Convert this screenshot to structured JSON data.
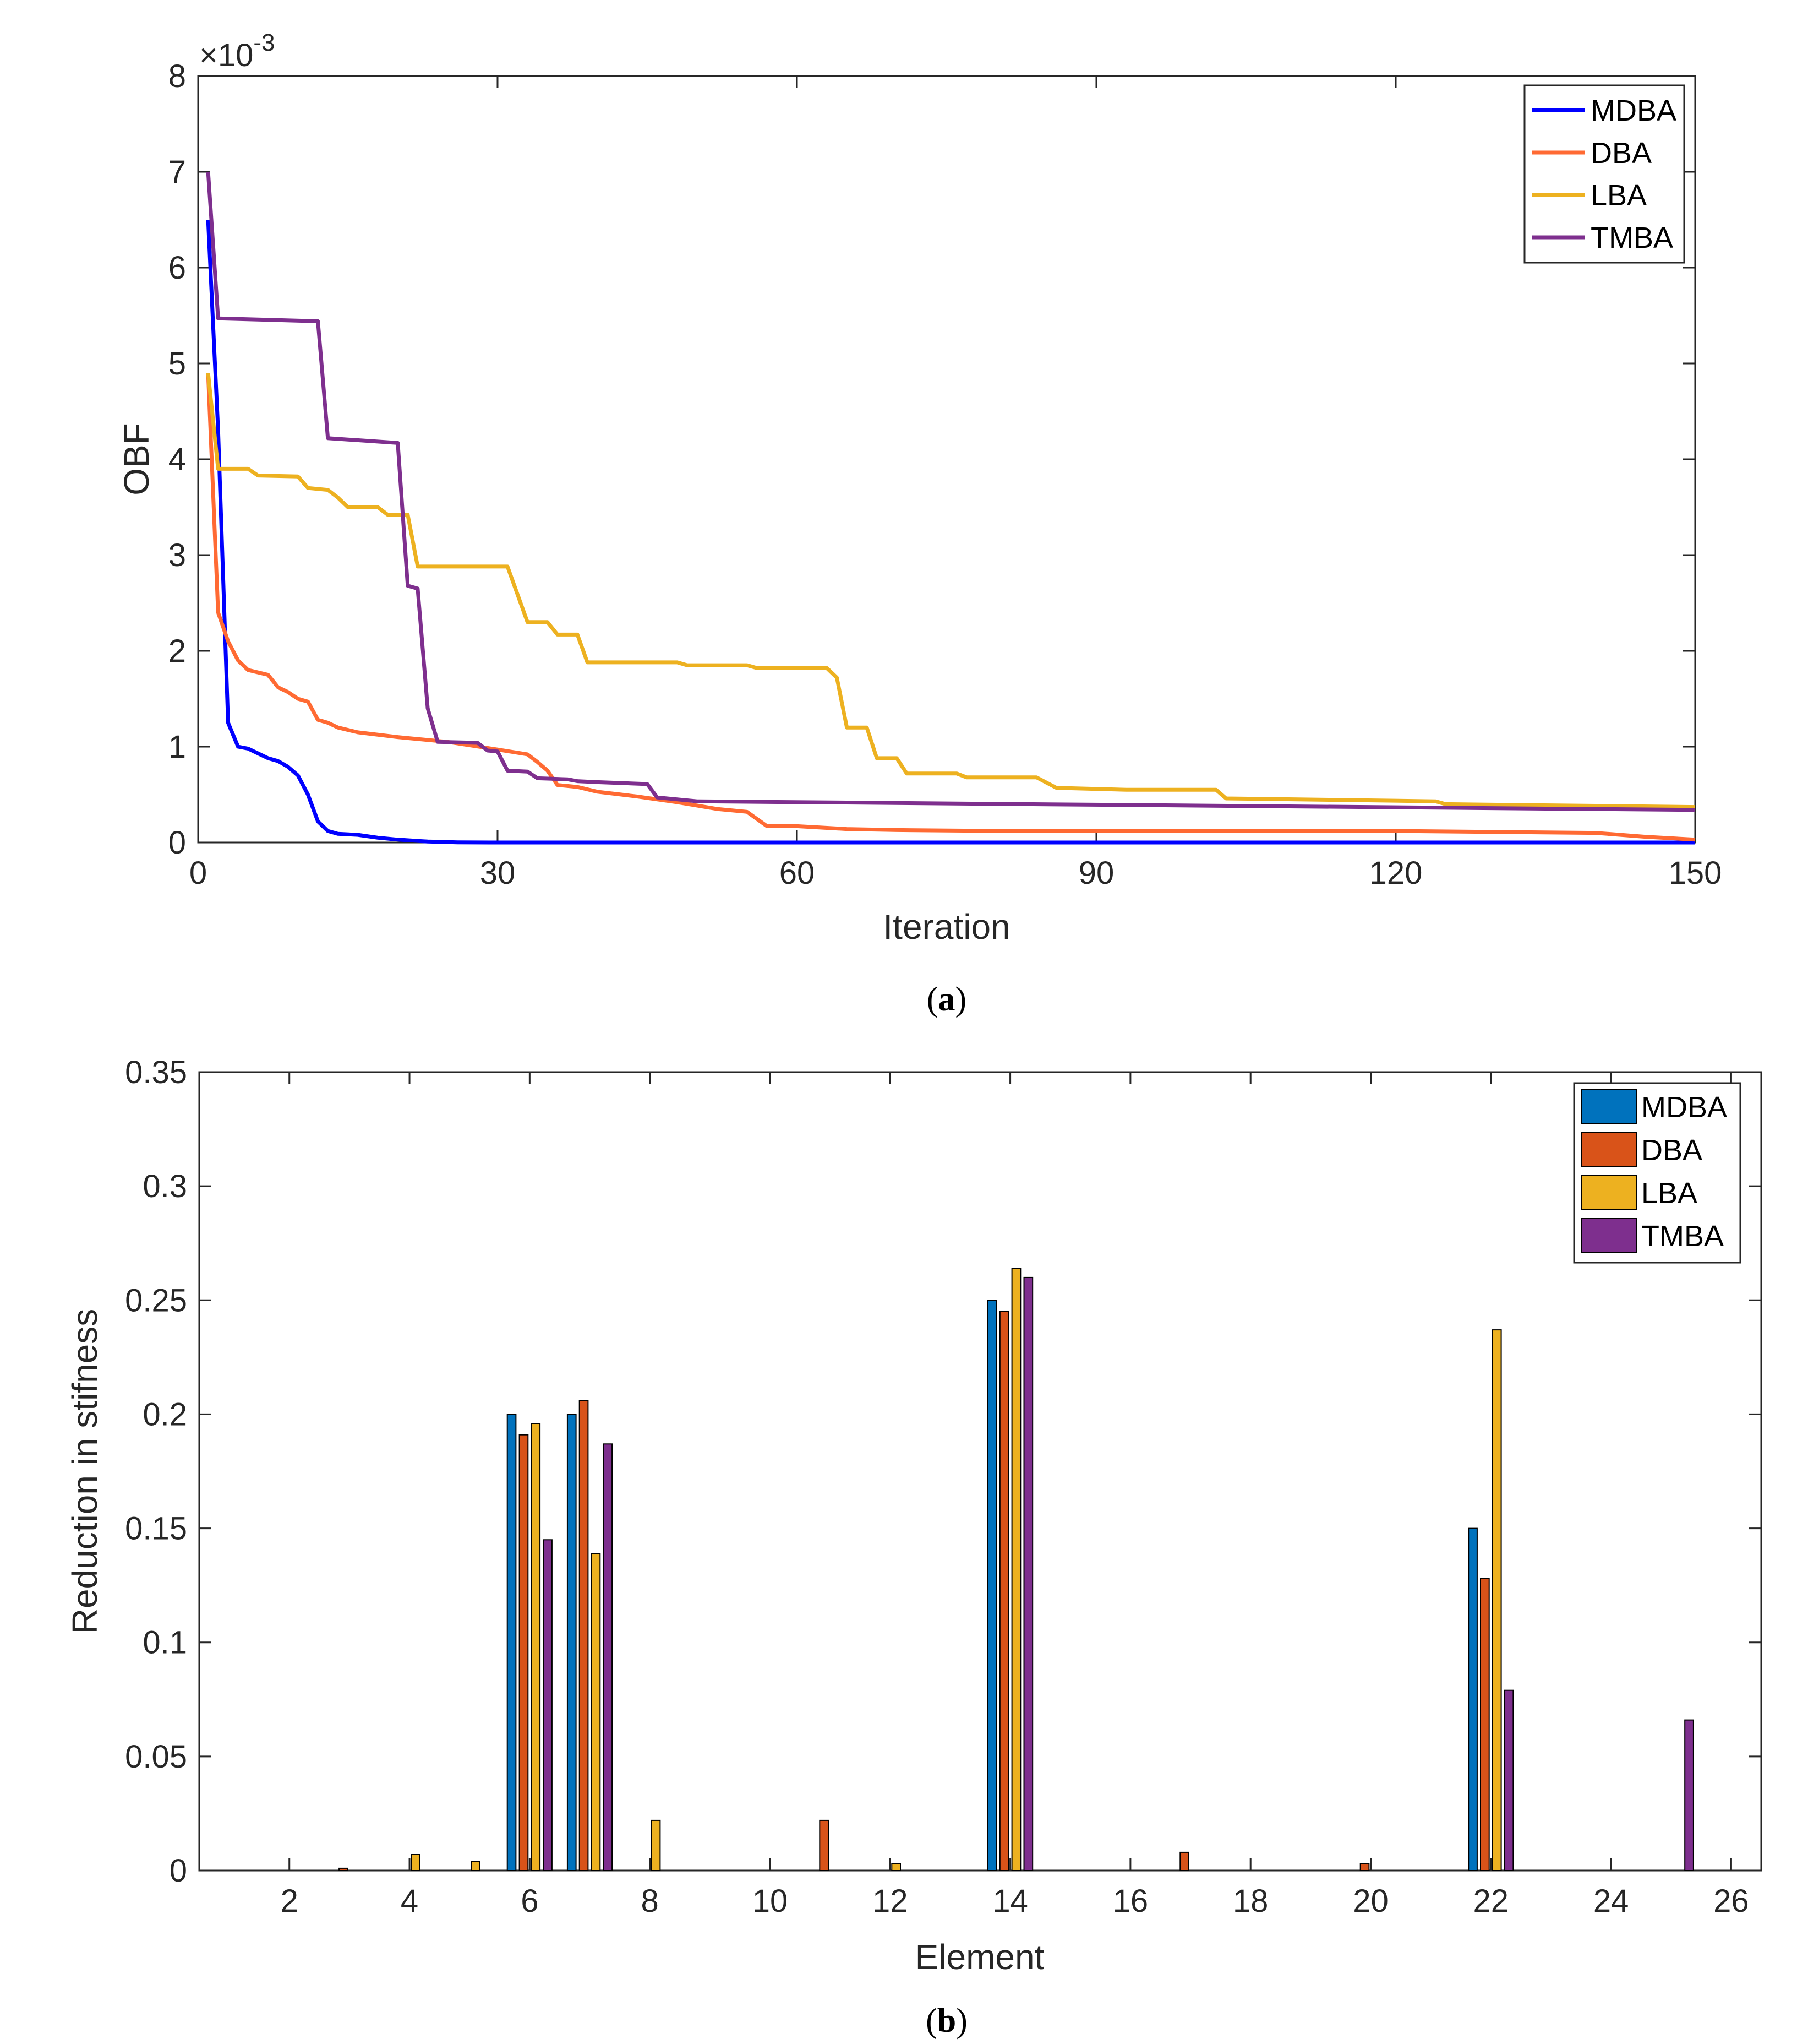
{
  "chart_data": [
    {
      "id": "a",
      "type": "line",
      "caption_letter": "a",
      "xlabel": "Iteration",
      "ylabel": "OBF",
      "exponent_label": "×10",
      "exponent_power": "-3",
      "xlim": [
        0,
        150
      ],
      "ylim": [
        0,
        8
      ],
      "xticks": [
        0,
        30,
        60,
        90,
        120,
        150
      ],
      "yticks": [
        0,
        1,
        2,
        3,
        4,
        5,
        6,
        7,
        8
      ],
      "legend_position": "top-right",
      "series": [
        {
          "name": "MDBA",
          "color": "#0000ff",
          "points": [
            [
              1,
              6.5
            ],
            [
              2,
              4.3
            ],
            [
              3,
              1.25
            ],
            [
              4,
              1.0
            ],
            [
              5,
              0.98
            ],
            [
              6,
              0.93
            ],
            [
              7,
              0.88
            ],
            [
              8,
              0.85
            ],
            [
              9,
              0.79
            ],
            [
              10,
              0.7
            ],
            [
              11,
              0.5
            ],
            [
              12,
              0.22
            ],
            [
              13,
              0.12
            ],
            [
              14,
              0.09
            ],
            [
              16,
              0.08
            ],
            [
              18,
              0.05
            ],
            [
              20,
              0.03
            ],
            [
              23,
              0.01
            ],
            [
              26,
              0.002
            ],
            [
              30,
              0.0
            ],
            [
              150,
              0.0
            ]
          ]
        },
        {
          "name": "DBA",
          "color": "#ff6a33",
          "points": [
            [
              1,
              4.9
            ],
            [
              2,
              2.4
            ],
            [
              3,
              2.1
            ],
            [
              4,
              1.9
            ],
            [
              5,
              1.8
            ],
            [
              7,
              1.75
            ],
            [
              8,
              1.62
            ],
            [
              9,
              1.57
            ],
            [
              10,
              1.5
            ],
            [
              11,
              1.47
            ],
            [
              12,
              1.28
            ],
            [
              13,
              1.25
            ],
            [
              14,
              1.2
            ],
            [
              16,
              1.15
            ],
            [
              20,
              1.1
            ],
            [
              25,
              1.05
            ],
            [
              30,
              0.97
            ],
            [
              33,
              0.92
            ],
            [
              34,
              0.84
            ],
            [
              35,
              0.75
            ],
            [
              36,
              0.6
            ],
            [
              38,
              0.58
            ],
            [
              40,
              0.53
            ],
            [
              44,
              0.48
            ],
            [
              48,
              0.42
            ],
            [
              52,
              0.35
            ],
            [
              55,
              0.32
            ],
            [
              57,
              0.17
            ],
            [
              60,
              0.17
            ],
            [
              65,
              0.14
            ],
            [
              70,
              0.13
            ],
            [
              80,
              0.12
            ],
            [
              100,
              0.12
            ],
            [
              120,
              0.12
            ],
            [
              140,
              0.1
            ],
            [
              145,
              0.06
            ],
            [
              150,
              0.03
            ]
          ]
        },
        {
          "name": "LBA",
          "color": "#edb120",
          "points": [
            [
              1,
              4.9
            ],
            [
              2,
              3.9
            ],
            [
              5,
              3.9
            ],
            [
              6,
              3.83
            ],
            [
              10,
              3.82
            ],
            [
              11,
              3.7
            ],
            [
              13,
              3.68
            ],
            [
              14,
              3.6
            ],
            [
              15,
              3.5
            ],
            [
              18,
              3.5
            ],
            [
              19,
              3.42
            ],
            [
              21,
              3.42
            ],
            [
              22,
              2.88
            ],
            [
              31,
              2.88
            ],
            [
              33,
              2.3
            ],
            [
              35,
              2.3
            ],
            [
              36,
              2.17
            ],
            [
              38,
              2.17
            ],
            [
              39,
              1.88
            ],
            [
              48,
              1.88
            ],
            [
              49,
              1.85
            ],
            [
              55,
              1.85
            ],
            [
              56,
              1.82
            ],
            [
              63,
              1.82
            ],
            [
              64,
              1.72
            ],
            [
              65,
              1.2
            ],
            [
              67,
              1.2
            ],
            [
              68,
              0.88
            ],
            [
              70,
              0.88
            ],
            [
              71,
              0.72
            ],
            [
              76,
              0.72
            ],
            [
              77,
              0.68
            ],
            [
              84,
              0.68
            ],
            [
              86,
              0.57
            ],
            [
              93,
              0.55
            ],
            [
              102,
              0.55
            ],
            [
              103,
              0.46
            ],
            [
              124,
              0.43
            ],
            [
              125,
              0.4
            ],
            [
              150,
              0.37
            ]
          ]
        },
        {
          "name": "TMBA",
          "color": "#7e2f8e",
          "points": [
            [
              1,
              7.0
            ],
            [
              2,
              5.47
            ],
            [
              12,
              5.44
            ],
            [
              13,
              4.22
            ],
            [
              20,
              4.17
            ],
            [
              21,
              2.68
            ],
            [
              22,
              2.65
            ],
            [
              23,
              1.4
            ],
            [
              24,
              1.05
            ],
            [
              28,
              1.04
            ],
            [
              29,
              0.96
            ],
            [
              30,
              0.95
            ],
            [
              31,
              0.75
            ],
            [
              33,
              0.74
            ],
            [
              34,
              0.67
            ],
            [
              37,
              0.66
            ],
            [
              38,
              0.64
            ],
            [
              40,
              0.63
            ],
            [
              45,
              0.61
            ],
            [
              46,
              0.47
            ],
            [
              48,
              0.45
            ],
            [
              50,
              0.43
            ],
            [
              150,
              0.34
            ]
          ]
        }
      ]
    },
    {
      "id": "b",
      "type": "bar",
      "caption_letter": "b",
      "xlabel": "Element",
      "ylabel": "Reduction in stifness",
      "xlim": [
        0.5,
        26.5
      ],
      "ylim": [
        0,
        0.35
      ],
      "xticks": [
        2,
        4,
        6,
        8,
        10,
        12,
        14,
        16,
        18,
        20,
        22,
        24,
        26
      ],
      "yticks": [
        0,
        0.05,
        0.1,
        0.15,
        0.2,
        0.25,
        0.3,
        0.35
      ],
      "ytick_labels": [
        "0",
        "0.05",
        "0.1",
        "0.15",
        "0.2",
        "0.25",
        "0.3",
        "0.35"
      ],
      "legend_position": "top-right",
      "categories": [
        1,
        2,
        3,
        4,
        5,
        6,
        7,
        8,
        9,
        10,
        11,
        12,
        13,
        14,
        15,
        16,
        17,
        18,
        19,
        20,
        21,
        22,
        23,
        24,
        25,
        26
      ],
      "series": [
        {
          "name": "MDBA",
          "color": "#0072bd",
          "values": [
            0,
            0,
            0,
            0,
            0,
            0.2,
            0.2,
            0,
            0,
            0,
            0,
            0,
            0,
            0.25,
            0,
            0,
            0,
            0,
            0,
            0,
            0,
            0.15,
            0,
            0,
            0,
            0
          ]
        },
        {
          "name": "DBA",
          "color": "#d95319",
          "values": [
            0,
            0,
            0.001,
            0,
            0,
            0.191,
            0.206,
            0,
            0,
            0,
            0.022,
            0,
            0,
            0.245,
            0,
            0,
            0.008,
            0,
            0,
            0.003,
            0,
            0.128,
            0,
            0,
            0,
            0
          ]
        },
        {
          "name": "LBA",
          "color": "#edb120",
          "values": [
            0,
            0,
            0,
            0.007,
            0.004,
            0.196,
            0.139,
            0.022,
            0,
            0,
            0,
            0.003,
            0,
            0.264,
            0,
            0,
            0,
            0,
            0,
            0,
            0,
            0.237,
            0,
            0,
            0,
            0
          ]
        },
        {
          "name": "TMBA",
          "color": "#7e2f8e",
          "values": [
            0,
            0,
            0,
            0,
            0,
            0.145,
            0.187,
            0,
            0,
            0,
            0,
            0,
            0,
            0.26,
            0,
            0,
            0,
            0,
            0,
            0,
            0,
            0.079,
            0,
            0,
            0.066,
            0
          ]
        }
      ]
    }
  ]
}
